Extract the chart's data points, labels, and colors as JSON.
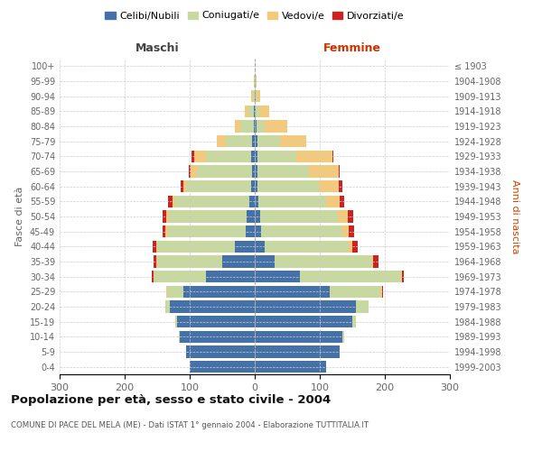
{
  "age_groups": [
    "0-4",
    "5-9",
    "10-14",
    "15-19",
    "20-24",
    "25-29",
    "30-34",
    "35-39",
    "40-44",
    "45-49",
    "50-54",
    "55-59",
    "60-64",
    "65-69",
    "70-74",
    "75-79",
    "80-84",
    "85-89",
    "90-94",
    "95-99",
    "100+"
  ],
  "birth_years": [
    "1999-2003",
    "1994-1998",
    "1989-1993",
    "1984-1988",
    "1979-1983",
    "1974-1978",
    "1969-1973",
    "1964-1968",
    "1959-1963",
    "1954-1958",
    "1949-1953",
    "1944-1948",
    "1939-1943",
    "1934-1938",
    "1929-1933",
    "1924-1928",
    "1919-1923",
    "1914-1918",
    "1909-1913",
    "1904-1908",
    "≤ 1903"
  ],
  "males": {
    "celibi": [
      100,
      105,
      115,
      120,
      130,
      110,
      75,
      50,
      30,
      14,
      12,
      8,
      5,
      4,
      5,
      4,
      2,
      2,
      0,
      0,
      0
    ],
    "coniugati": [
      0,
      0,
      1,
      2,
      8,
      25,
      80,
      100,
      120,
      120,
      120,
      115,
      100,
      85,
      70,
      40,
      20,
      8,
      3,
      1,
      0
    ],
    "vedovi": [
      0,
      0,
      0,
      0,
      0,
      1,
      1,
      1,
      2,
      3,
      4,
      3,
      5,
      10,
      18,
      15,
      8,
      5,
      2,
      1,
      0
    ],
    "divorziati": [
      0,
      0,
      0,
      0,
      0,
      0,
      2,
      4,
      5,
      5,
      6,
      8,
      4,
      2,
      4,
      0,
      0,
      0,
      0,
      0,
      0
    ]
  },
  "females": {
    "nubili": [
      110,
      130,
      135,
      150,
      155,
      115,
      70,
      30,
      15,
      10,
      8,
      5,
      4,
      4,
      4,
      4,
      3,
      2,
      1,
      0,
      0
    ],
    "coniugate": [
      0,
      1,
      2,
      5,
      20,
      80,
      155,
      150,
      130,
      125,
      120,
      105,
      95,
      80,
      60,
      35,
      12,
      5,
      2,
      1,
      0
    ],
    "vedove": [
      0,
      0,
      0,
      0,
      0,
      1,
      1,
      2,
      5,
      10,
      15,
      20,
      30,
      45,
      55,
      40,
      35,
      15,
      5,
      2,
      0
    ],
    "divorziate": [
      0,
      0,
      0,
      0,
      0,
      1,
      3,
      8,
      8,
      8,
      8,
      8,
      6,
      2,
      2,
      0,
      0,
      0,
      0,
      0,
      0
    ]
  },
  "colors": {
    "celibi_nubili": "#4472a8",
    "coniugati": "#c8d9a0",
    "vedovi": "#f5c97a",
    "divorziati": "#cc2222"
  },
  "xlim": 300,
  "title": "Popolazione per età, sesso e stato civile - 2004",
  "subtitle": "COMUNE DI PACE DEL MELA (ME) - Dati ISTAT 1° gennaio 2004 - Elaborazione TUTTITALIA.IT",
  "ylabel_left": "Fasce di età",
  "ylabel_right": "Anni di nascita",
  "xlabel_maschi": "Maschi",
  "xlabel_femmine": "Femmine",
  "legend_labels": [
    "Celibi/Nubili",
    "Coniugati/e",
    "Vedovi/e",
    "Divorziati/e"
  ]
}
